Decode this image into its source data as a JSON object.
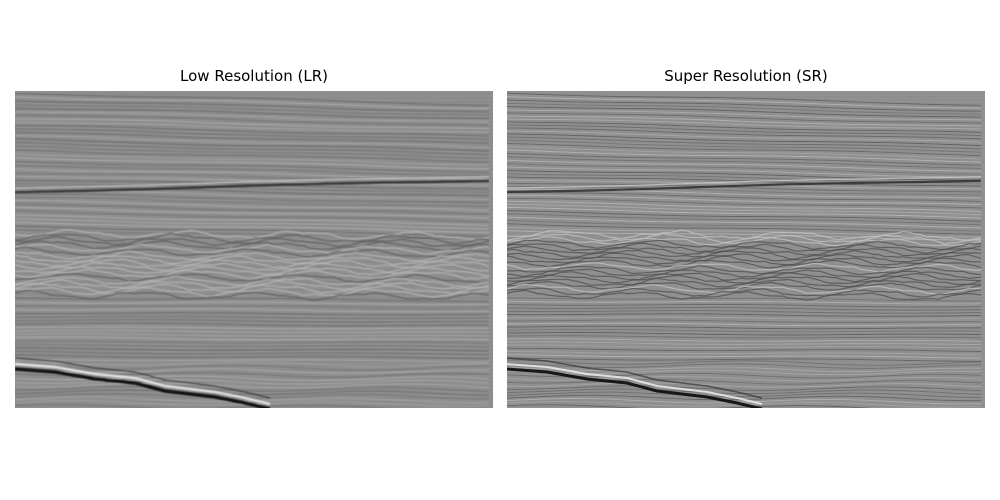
{
  "figure": {
    "panels": [
      {
        "title": "Low Resolution (LR)"
      },
      {
        "title": "Super Resolution (SR)"
      }
    ]
  }
}
